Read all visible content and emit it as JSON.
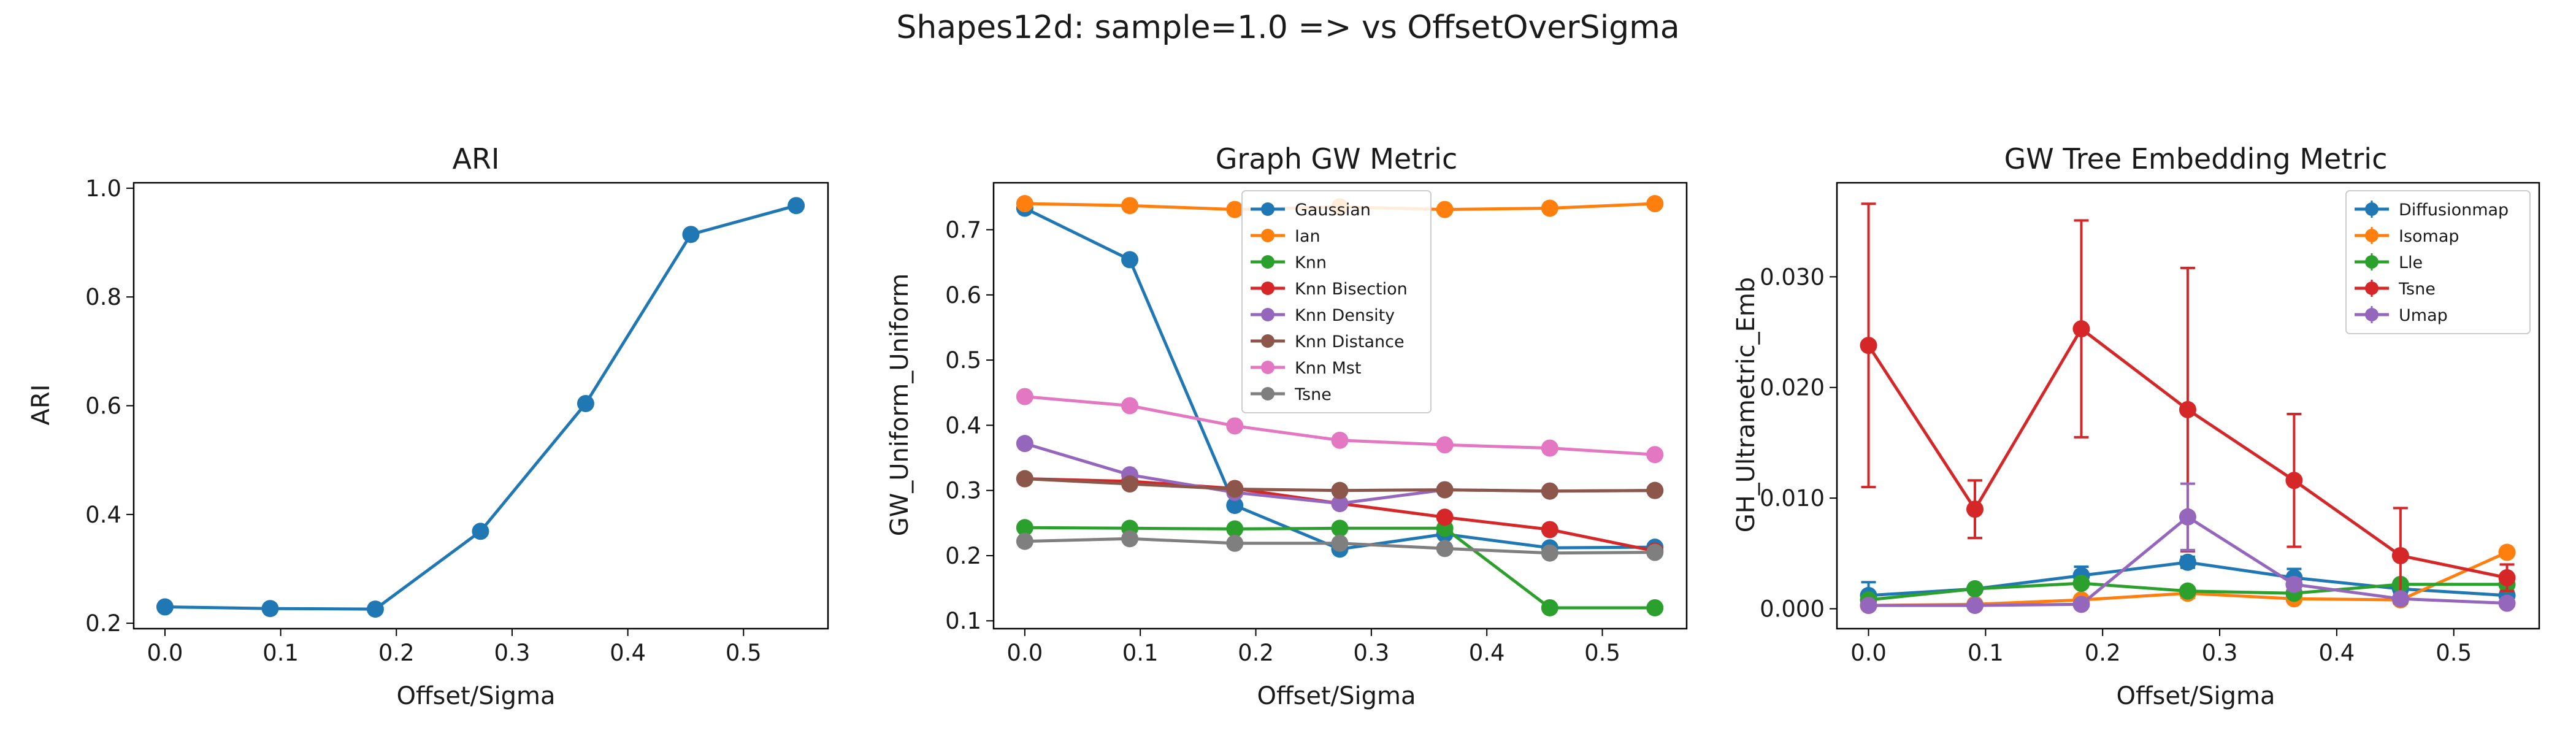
{
  "figure": {
    "title": "Shapes12d: sample=1.0 => vs OffsetOverSigma"
  },
  "chart_data": [
    {
      "type": "line",
      "title": "ARI",
      "xlabel": "Offset/Sigma",
      "ylabel": "ARI",
      "xlim": [
        -0.027,
        0.573
      ],
      "ylim": [
        0.19,
        1.01
      ],
      "xticks": [
        0.0,
        0.1,
        0.2,
        0.3,
        0.4,
        0.5
      ],
      "xtick_labels": [
        "0.0",
        "0.1",
        "0.2",
        "0.3",
        "0.4",
        "0.5"
      ],
      "yticks": [
        0.2,
        0.4,
        0.6,
        0.8,
        1.0
      ],
      "ytick_labels": [
        "0.2",
        "0.4",
        "0.6",
        "0.8",
        "1.0"
      ],
      "x": [
        0.0,
        0.0909,
        0.1818,
        0.2727,
        0.3636,
        0.4545,
        0.5455
      ],
      "legend": "none",
      "series": [
        {
          "name": "",
          "color": "#1f77b4",
          "values": [
            0.23,
            0.227,
            0.226,
            0.369,
            0.604,
            0.915,
            0.968
          ]
        }
      ]
    },
    {
      "type": "line",
      "title": "Graph GW Metric",
      "xlabel": "Offset/Sigma",
      "ylabel": "GW_Uniform_Uniform",
      "xlim": [
        -0.027,
        0.573
      ],
      "ylim": [
        0.088,
        0.772
      ],
      "xticks": [
        0.0,
        0.1,
        0.2,
        0.3,
        0.4,
        0.5
      ],
      "xtick_labels": [
        "0.0",
        "0.1",
        "0.2",
        "0.3",
        "0.4",
        "0.5"
      ],
      "yticks": [
        0.1,
        0.2,
        0.3,
        0.4,
        0.5,
        0.6,
        0.7
      ],
      "ytick_labels": [
        "0.1",
        "0.2",
        "0.3",
        "0.4",
        "0.5",
        "0.6",
        "0.7"
      ],
      "x": [
        0.0,
        0.0909,
        0.1818,
        0.2727,
        0.3636,
        0.4545,
        0.5455
      ],
      "legend": "upper-center",
      "series": [
        {
          "name": "Gaussian",
          "color": "#1f77b4",
          "values": [
            0.733,
            0.654,
            0.277,
            0.21,
            0.233,
            0.212,
            0.213
          ]
        },
        {
          "name": "Ian",
          "color": "#ff7f0e",
          "values": [
            0.74,
            0.737,
            0.731,
            0.735,
            0.731,
            0.733,
            0.74
          ]
        },
        {
          "name": "Knn",
          "color": "#2ca02c",
          "values": [
            0.243,
            0.242,
            0.241,
            0.242,
            0.242,
            0.12,
            0.12
          ]
        },
        {
          "name": "Knn Bisection",
          "color": "#d62728",
          "values": [
            0.318,
            0.314,
            0.303,
            0.28,
            0.259,
            0.24,
            0.207
          ]
        },
        {
          "name": "Knn Density",
          "color": "#9467bd",
          "values": [
            0.372,
            0.324,
            0.297,
            0.28,
            0.301,
            0.299,
            0.3
          ]
        },
        {
          "name": "Knn Distance",
          "color": "#8c564b",
          "values": [
            0.318,
            0.31,
            0.302,
            0.3,
            0.301,
            0.299,
            0.3
          ]
        },
        {
          "name": "Knn Mst",
          "color": "#e377c2",
          "values": [
            0.444,
            0.43,
            0.399,
            0.377,
            0.37,
            0.365,
            0.355
          ]
        },
        {
          "name": "Tsne",
          "color": "#7f7f7f",
          "values": [
            0.222,
            0.226,
            0.219,
            0.219,
            0.211,
            0.204,
            0.205
          ]
        }
      ]
    },
    {
      "type": "line",
      "title": "GW Tree Embedding Metric",
      "xlabel": "Offset/Sigma",
      "ylabel": "GH_Ultrametric_Emb",
      "xlim": [
        -0.027,
        0.573
      ],
      "ylim": [
        -0.0018,
        0.0385
      ],
      "xticks": [
        0.0,
        0.1,
        0.2,
        0.3,
        0.4,
        0.5
      ],
      "xtick_labels": [
        "0.0",
        "0.1",
        "0.2",
        "0.3",
        "0.4",
        "0.5"
      ],
      "yticks": [
        0.0,
        0.01,
        0.02,
        0.03
      ],
      "ytick_labels": [
        "0.000",
        "0.010",
        "0.020",
        "0.030"
      ],
      "x": [
        0.0,
        0.0909,
        0.1818,
        0.2727,
        0.3636,
        0.4545,
        0.5455
      ],
      "legend": "upper-right",
      "series": [
        {
          "name": "Diffusionmap",
          "color": "#1f77b4",
          "values": [
            0.0012,
            0.0018,
            0.003,
            0.0042,
            0.0028,
            0.0018,
            0.0012
          ],
          "err": [
            0.0012,
            0.0003,
            0.0008,
            0.0005,
            0.0008,
            0.0004,
            0.0003
          ]
        },
        {
          "name": "Isomap",
          "color": "#ff7f0e",
          "values": [
            0.0003,
            0.0004,
            0.0008,
            0.0014,
            0.0009,
            0.0008,
            0.0051
          ],
          "err": [
            0.0001,
            0.0001,
            0.0002,
            0.0004,
            0.0002,
            0.0002,
            0.0003
          ]
        },
        {
          "name": "Lle",
          "color": "#2ca02c",
          "values": [
            0.0008,
            0.0018,
            0.0023,
            0.0016,
            0.0014,
            0.0022,
            0.0022
          ],
          "err": [
            0.0002,
            0.0002,
            0.0003,
            0.0002,
            0.0002,
            0.0003,
            0.0002
          ]
        },
        {
          "name": "Tsne",
          "color": "#d62728",
          "values": [
            0.0238,
            0.009,
            0.0253,
            0.018,
            0.0116,
            0.0048,
            0.0028
          ],
          "err": [
            0.0128,
            0.0026,
            0.0098,
            0.0128,
            0.006,
            0.0043,
            0.0012
          ]
        },
        {
          "name": "Umap",
          "color": "#9467bd",
          "values": [
            0.0003,
            0.0003,
            0.0004,
            0.0083,
            0.0022,
            0.0009,
            0.0005
          ],
          "err": [
            0.0001,
            0.0001,
            0.0001,
            0.003,
            0.0005,
            0.0002,
            0.0001
          ]
        }
      ]
    }
  ]
}
